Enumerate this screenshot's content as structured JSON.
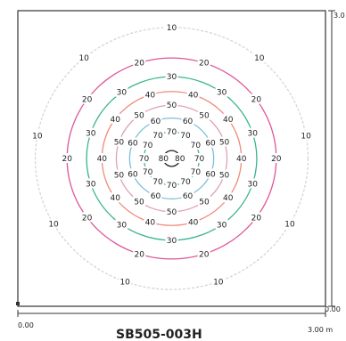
{
  "chart_data": {
    "type": "contour",
    "title": "SB505-003H",
    "x_axis": {
      "start_label": "0.00",
      "end_label": "3.00 m",
      "range": [
        0,
        3.0
      ]
    },
    "y_axis": {
      "start_label": "0.00",
      "end_label": "3.0",
      "range": [
        0,
        3.0
      ]
    },
    "center": [
      1.5,
      1.5
    ],
    "levels": [
      {
        "value": 10,
        "color": "#d8d0c8",
        "radius_m": 1.33,
        "labels": [
          "10",
          "10",
          "10",
          "10",
          "10",
          "10",
          "10",
          "10",
          "10"
        ]
      },
      {
        "value": 20,
        "color": "#e0559a",
        "radius_m": 1.02,
        "labels": [
          "20",
          "20",
          "20",
          "20",
          "20",
          "20",
          "20",
          "20",
          "20",
          "20"
        ]
      },
      {
        "value": 30,
        "color": "#39b58a",
        "radius_m": 0.83,
        "labels": [
          "30",
          "30",
          "30",
          "30",
          "30",
          "30",
          "30",
          "30",
          "30",
          "30"
        ]
      },
      {
        "value": 40,
        "color": "#f08a7a",
        "radius_m": 0.68,
        "labels": [
          "40",
          "40",
          "40",
          "40",
          "40",
          "40",
          "40",
          "40",
          "40",
          "40"
        ]
      },
      {
        "value": 50,
        "color": "#e0a0b8",
        "radius_m": 0.54,
        "labels": [
          "50",
          "50",
          "50",
          "50",
          "50",
          "50",
          "50",
          "50",
          "50",
          "50"
        ]
      },
      {
        "value": 60,
        "color": "#7ac0d8",
        "radius_m": 0.41,
        "labels": [
          "60",
          "60",
          "60",
          "60",
          "60",
          "60",
          "60",
          "60"
        ]
      },
      {
        "value": 70,
        "color": "#3cb89e",
        "radius_m": 0.27,
        "labels": [
          "70",
          "70",
          "70",
          "70",
          "70",
          "70",
          "70",
          "70",
          "70",
          "70",
          "70",
          "70"
        ]
      },
      {
        "value": 80,
        "color": "#222222",
        "radius_m": 0.08,
        "labels": [
          "80",
          "80"
        ]
      }
    ],
    "grid": false,
    "legend": "none"
  }
}
